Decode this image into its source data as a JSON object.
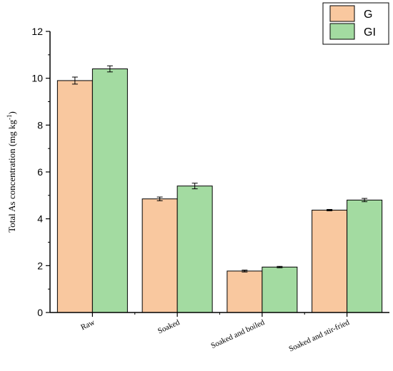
{
  "chart_data": {
    "type": "bar",
    "categories": [
      "Raw",
      "Soaked",
      "Soaked and boiled",
      "Soaked and stir-fried"
    ],
    "series": [
      {
        "name": "G",
        "values": [
          9.9,
          4.85,
          1.77,
          4.37
        ],
        "errors": [
          0.15,
          0.08,
          0.04,
          0.03
        ]
      },
      {
        "name": "GI",
        "values": [
          10.4,
          5.4,
          1.94,
          4.8
        ],
        "errors": [
          0.13,
          0.12,
          0.03,
          0.07
        ]
      }
    ],
    "colors": {
      "G": "#F9C89F",
      "GI": "#A3DBA1"
    },
    "ylabel_main": "Total As concentration (mg kg",
    "ylabel_sup": "-1",
    "ylabel_end": ")",
    "ylim": [
      0,
      12
    ],
    "yticks": [
      "0",
      "2",
      "4",
      "6",
      "8",
      "10",
      "12"
    ],
    "legend_position": "top-right",
    "grid": false
  }
}
